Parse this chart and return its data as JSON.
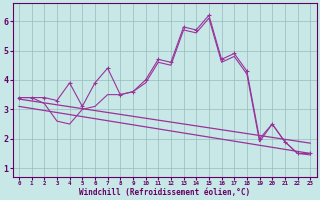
{
  "xlabel": "Windchill (Refroidissement éolien,°C)",
  "bg_color": "#c8e8e8",
  "line_color": "#993399",
  "grid_color": "#99bbbb",
  "xlim_min": -0.5,
  "xlim_max": 23.5,
  "ylim_min": 0.7,
  "ylim_max": 6.6,
  "xticks": [
    0,
    1,
    2,
    3,
    4,
    5,
    6,
    7,
    8,
    9,
    10,
    11,
    12,
    13,
    14,
    15,
    16,
    17,
    18,
    19,
    20,
    21,
    22,
    23
  ],
  "yticks": [
    1,
    2,
    3,
    4,
    5,
    6
  ],
  "line1_x": [
    0,
    1,
    2,
    3,
    4,
    5,
    6,
    7,
    8,
    9,
    10,
    11,
    12,
    13,
    14,
    15,
    16,
    17,
    18,
    19,
    20,
    21,
    22,
    23
  ],
  "line1_y": [
    3.4,
    3.4,
    3.4,
    3.3,
    3.9,
    3.1,
    3.9,
    4.4,
    3.5,
    3.6,
    4.0,
    4.7,
    4.6,
    5.8,
    5.7,
    6.2,
    4.7,
    4.9,
    4.3,
    2.0,
    2.5,
    1.9,
    1.5,
    1.5
  ],
  "line2_x": [
    0,
    1,
    2,
    3,
    4,
    5,
    6,
    7,
    8,
    9,
    10,
    11,
    12,
    13,
    14,
    15,
    16,
    17,
    18,
    19,
    20,
    21,
    22,
    23
  ],
  "line2_y": [
    3.4,
    3.4,
    3.2,
    2.6,
    2.5,
    3.0,
    3.1,
    3.5,
    3.5,
    3.6,
    3.9,
    4.6,
    4.5,
    5.7,
    5.6,
    6.1,
    4.6,
    4.8,
    4.2,
    1.9,
    2.5,
    1.9,
    1.5,
    1.45
  ],
  "line3_x": [
    0,
    23
  ],
  "line3_y": [
    3.35,
    1.85
  ],
  "line4_x": [
    0,
    23
  ],
  "line4_y": [
    3.1,
    1.5
  ]
}
